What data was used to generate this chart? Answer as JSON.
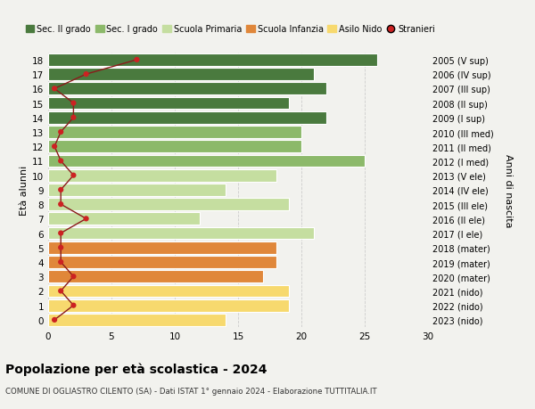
{
  "ages": [
    0,
    1,
    2,
    3,
    4,
    5,
    6,
    7,
    8,
    9,
    10,
    11,
    12,
    13,
    14,
    15,
    16,
    17,
    18
  ],
  "right_labels": [
    "2023 (nido)",
    "2022 (nido)",
    "2021 (nido)",
    "2020 (mater)",
    "2019 (mater)",
    "2018 (mater)",
    "2017 (I ele)",
    "2016 (II ele)",
    "2015 (III ele)",
    "2014 (IV ele)",
    "2013 (V ele)",
    "2012 (I med)",
    "2011 (II med)",
    "2010 (III med)",
    "2009 (I sup)",
    "2008 (II sup)",
    "2007 (III sup)",
    "2006 (IV sup)",
    "2005 (V sup)"
  ],
  "bar_values": [
    14,
    19,
    19,
    17,
    18,
    18,
    21,
    12,
    19,
    14,
    18,
    25,
    20,
    20,
    22,
    19,
    22,
    21,
    26
  ],
  "bar_colors": [
    "#f7d96e",
    "#f7d96e",
    "#f7d96e",
    "#e0873a",
    "#e0873a",
    "#e0873a",
    "#c5dea0",
    "#c5dea0",
    "#c5dea0",
    "#c5dea0",
    "#c5dea0",
    "#8cb96a",
    "#8cb96a",
    "#8cb96a",
    "#4a7a3e",
    "#4a7a3e",
    "#4a7a3e",
    "#4a7a3e",
    "#4a7a3e"
  ],
  "stranieri_values": [
    0.5,
    2,
    1,
    2,
    1,
    1,
    1,
    3,
    1,
    1,
    2,
    1,
    0.5,
    1,
    2,
    2,
    0.5,
    3,
    7
  ],
  "title": "Popolazione per età scolastica - 2024",
  "subtitle": "COMUNE DI OGLIASTRO CILENTO (SA) - Dati ISTAT 1° gennaio 2024 - Elaborazione TUTTITALIA.IT",
  "ylabel_label": "Età alunni",
  "right_axis_label": "Anni di nascita",
  "xlim": [
    0,
    30
  ],
  "ylim": [
    -0.5,
    18.5
  ],
  "xticks": [
    0,
    5,
    10,
    15,
    20,
    25,
    30
  ],
  "legend_labels": [
    "Sec. II grado",
    "Sec. I grado",
    "Scuola Primaria",
    "Scuola Infanzia",
    "Asilo Nido",
    "Stranieri"
  ],
  "legend_colors": [
    "#4a7a3e",
    "#8cb96a",
    "#c5dea0",
    "#e0873a",
    "#f7d96e",
    "#cc2222"
  ],
  "bg_color": "#f2f2ee",
  "grid_color": "#cccccc",
  "bar_edgecolor": "white",
  "bar_linewidth": 0.8,
  "bar_height": 0.85
}
